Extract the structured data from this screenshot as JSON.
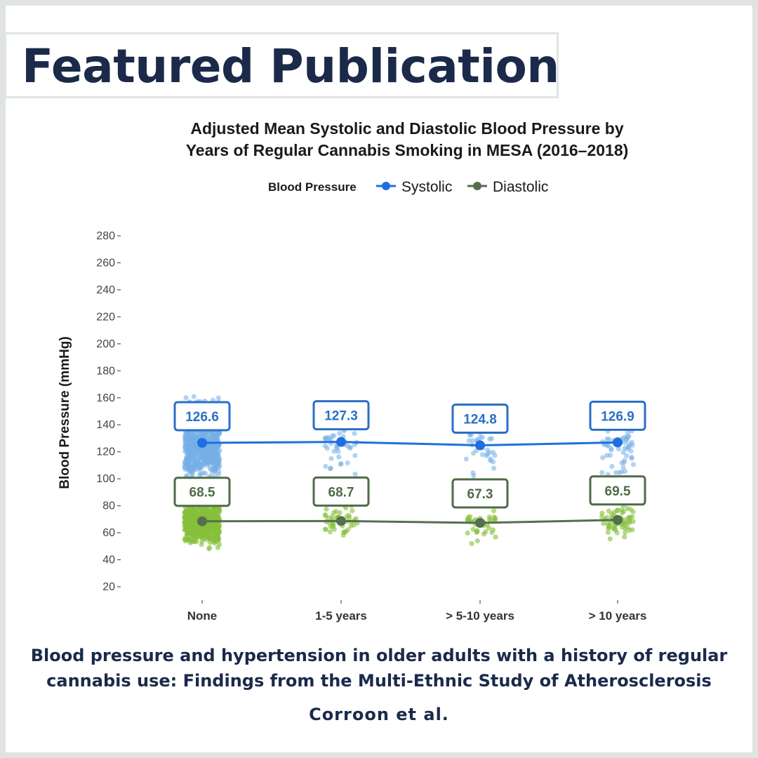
{
  "header": {
    "title": "Featured Publication"
  },
  "colors": {
    "navy": "#1b2a4a",
    "systolic_point": "#1f6fe0",
    "systolic_jitter": "#74afe6",
    "diastolic_point": "#556f4f",
    "diastolic_jitter": "#86c03a"
  },
  "chart_data": {
    "type": "line",
    "title": "Adjusted Mean Systolic and Diastolic Blood Pressure by Years of Regular Cannabis Smoking in MESA (2016–2018)",
    "title_line1": "Adjusted Mean Systolic and Diastolic Blood Pressure by",
    "title_line2": "Years of Regular Cannabis Smoking in MESA (2016–2018)",
    "legend_title": "Blood Pressure",
    "legend_position": "top",
    "xlabel": "",
    "ylabel": "Blood Pressure (mmHg)",
    "ylim": [
      15,
      285
    ],
    "yticks": [
      20,
      40,
      60,
      80,
      100,
      120,
      140,
      160,
      180,
      200,
      220,
      240,
      260,
      280
    ],
    "categories": [
      "None",
      "1-5 years",
      "> 5-10 years",
      "> 10 years"
    ],
    "series": [
      {
        "name": "Systolic",
        "values": [
          126.6,
          127.3,
          124.8,
          126.9
        ],
        "labels": [
          "126.6",
          "127.3",
          "124.8",
          "126.9"
        ]
      },
      {
        "name": "Diastolic",
        "values": [
          68.5,
          68.7,
          67.3,
          69.5
        ],
        "labels": [
          "68.5",
          "68.7",
          "67.3",
          "69.5"
        ]
      }
    ],
    "grid": false
  },
  "footer": {
    "publication_title_line1": "Blood pressure and hypertension in older adults with a history of regular",
    "publication_title_line2": "cannabis use: Findings from the Multi-Ethnic Study of Atherosclerosis",
    "authors": "Corroon et al."
  }
}
